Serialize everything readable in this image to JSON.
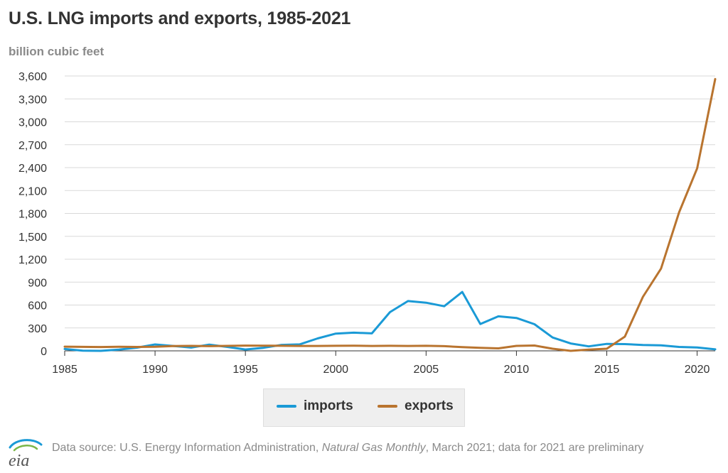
{
  "title": "U.S. LNG imports and exports, 1985-2021",
  "unit_label": "billion cubic feet",
  "source": {
    "prefix": "Data source: U.S. Energy Information Administration, ",
    "publication": "Natural Gas Monthly",
    "suffix": ", March 2021; data for 2021 are preliminary"
  },
  "logo_text": "eia",
  "colors": {
    "imports": "#1a9ad6",
    "exports": "#b9742f",
    "grid": "#d9d9d9",
    "axis": "#333333"
  },
  "chart_data": {
    "type": "line",
    "title": "U.S. LNG imports and exports, 1985-2021",
    "ylabel": "billion cubic feet",
    "xlim": [
      1985,
      2021
    ],
    "ylim": [
      0,
      3600
    ],
    "x_ticks": [
      1985,
      1990,
      1995,
      2000,
      2005,
      2010,
      2015,
      2020
    ],
    "y_ticks": [
      0,
      300,
      600,
      900,
      1200,
      1500,
      1800,
      2100,
      2400,
      2700,
      3000,
      3300,
      3600
    ],
    "x": [
      1985,
      1986,
      1987,
      1988,
      1989,
      1990,
      1991,
      1992,
      1993,
      1994,
      1995,
      1996,
      1997,
      1998,
      1999,
      2000,
      2001,
      2002,
      2003,
      2004,
      2005,
      2006,
      2007,
      2008,
      2009,
      2010,
      2011,
      2012,
      2013,
      2014,
      2015,
      2016,
      2017,
      2018,
      2019,
      2020,
      2021
    ],
    "series": [
      {
        "name": "imports",
        "values": [
          24,
          2,
          0,
          17,
          42,
          84,
          64,
          43,
          82,
          51,
          18,
          40,
          78,
          85,
          163,
          226,
          238,
          229,
          507,
          652,
          631,
          584,
          771,
          352,
          452,
          431,
          349,
          175,
          97,
          59,
          91,
          88,
          77,
          73,
          51,
          44,
          20
        ]
      },
      {
        "name": "exports",
        "values": [
          55,
          52,
          50,
          53,
          51,
          53,
          63,
          65,
          61,
          65,
          69,
          68,
          66,
          64,
          64,
          66,
          67,
          64,
          66,
          64,
          66,
          61,
          48,
          39,
          33,
          65,
          70,
          28,
          0,
          16,
          28,
          186,
          707,
          1077,
          1814,
          2390,
          3560
        ]
      }
    ],
    "grid": true,
    "legend": "bottom-center"
  }
}
